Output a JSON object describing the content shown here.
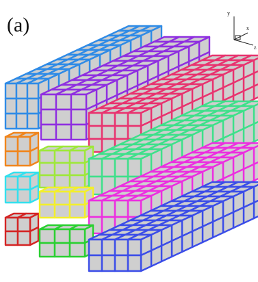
{
  "figure": {
    "panel_label": "(a)",
    "axes": {
      "y": "y",
      "x": "x",
      "z": "z"
    }
  },
  "cell_face_color": "#cfcfcf",
  "bars": [
    {
      "name": "blue-back",
      "color": "#2f8be6"
    },
    {
      "name": "violet",
      "color": "#8f2fe0"
    },
    {
      "name": "pink-top",
      "color": "#e8336f"
    },
    {
      "name": "green-upper",
      "color": "#3ee08a"
    },
    {
      "name": "magenta",
      "color": "#ec2ee0"
    },
    {
      "name": "blue-bottom",
      "color": "#3b4de8"
    },
    {
      "name": "orange",
      "color": "#f0851c"
    },
    {
      "name": "lime",
      "color": "#9ee83a"
    },
    {
      "name": "cyan",
      "color": "#33e0ee"
    },
    {
      "name": "yellow",
      "color": "#f3ef2a"
    },
    {
      "name": "red",
      "color": "#d42424"
    },
    {
      "name": "green-front",
      "color": "#29d030"
    }
  ]
}
